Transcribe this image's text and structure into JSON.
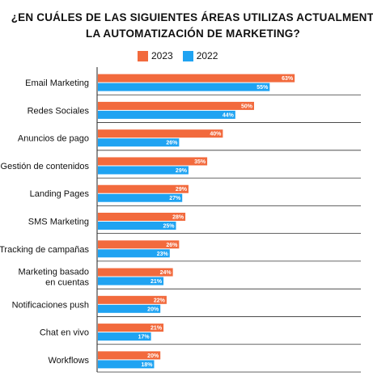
{
  "chart_data": {
    "type": "bar",
    "orientation": "horizontal",
    "title_lines": [
      "¿EN CUÁLES DE LAS SIGUIENTES ÁREAS UTILIZAS ACTUALMENTE",
      "LA AUTOMATIZACIÓN DE MARKETING?"
    ],
    "categories": [
      "Email Marketing",
      "Redes Sociales",
      "Anuncios de pago",
      "Gestión de contenidos",
      "Landing Pages",
      "SMS Marketing",
      "Tracking de campañas",
      "Marketing basado en cuentas",
      "Notificaciones push",
      "Chat en vivo",
      "Workflows"
    ],
    "category_label_lines": [
      [
        "Email Marketing"
      ],
      [
        "Redes Sociales"
      ],
      [
        "Anuncios de pago"
      ],
      [
        "Gestión de contenidos"
      ],
      [
        "Landing Pages"
      ],
      [
        "SMS Marketing"
      ],
      [
        "Tracking de campañas"
      ],
      [
        "Marketing basado",
        "en cuentas"
      ],
      [
        "Notificaciones push"
      ],
      [
        "Chat en vivo"
      ],
      [
        "Workflows"
      ]
    ],
    "series": [
      {
        "name": "2023",
        "color": "#f26a3d",
        "values": [
          63,
          50,
          40,
          35,
          29,
          28,
          26,
          24,
          22,
          21,
          20
        ]
      },
      {
        "name": "2022",
        "color": "#1fa3f2",
        "values": [
          55,
          44,
          26,
          29,
          27,
          25,
          23,
          21,
          20,
          17,
          18
        ]
      }
    ],
    "value_suffix": "%",
    "xlim": [
      0,
      100
    ],
    "grid": "horizontal separators between categories",
    "legend_position": "top-center"
  }
}
